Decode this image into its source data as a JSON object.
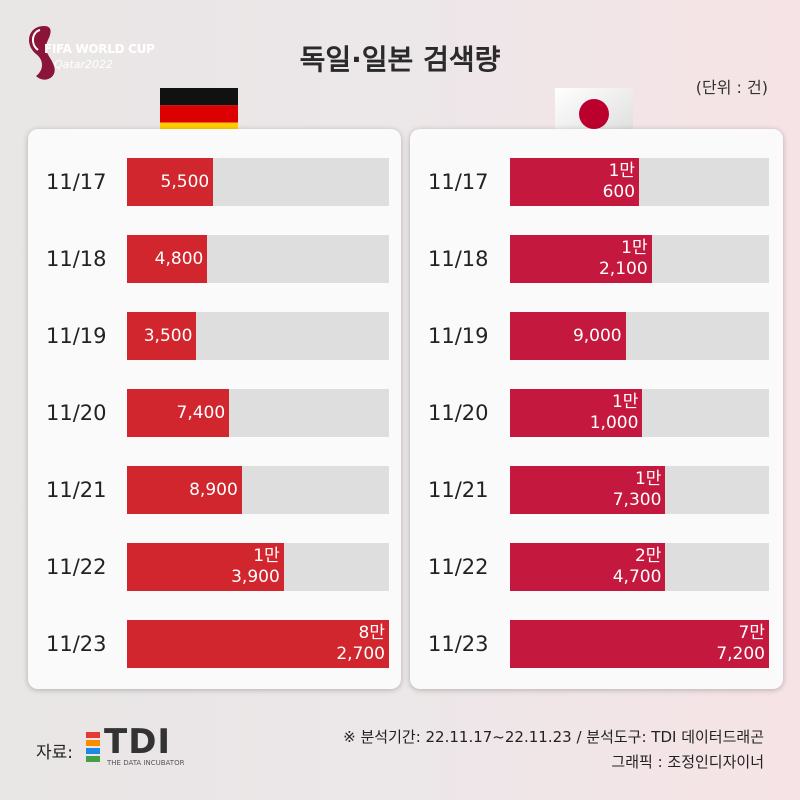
{
  "logo": {
    "line1": "FIFA WORLD CUP",
    "line2": "Qatar2022"
  },
  "title": "독일·일본 검색량",
  "unit": "(단위 : 건)",
  "colors": {
    "germany_bar": "#d1262e",
    "japan_bar": "#c4183f",
    "track": "#dedede"
  },
  "chart_data": [
    {
      "type": "bar",
      "orientation": "horizontal",
      "flag": "germany",
      "categories": [
        "11/17",
        "11/18",
        "11/19",
        "11/20",
        "11/21",
        "11/22",
        "11/23"
      ],
      "values": [
        5500,
        4800,
        3500,
        7400,
        8900,
        13900,
        82700
      ],
      "labels": [
        [
          "5,500"
        ],
        [
          "4,800"
        ],
        [
          "3,500"
        ],
        [
          "7,400"
        ],
        [
          "8,900"
        ],
        [
          "1만",
          "3,900"
        ],
        [
          "8만",
          "2,700"
        ]
      ]
    },
    {
      "type": "bar",
      "orientation": "horizontal",
      "flag": "japan",
      "categories": [
        "11/17",
        "11/18",
        "11/19",
        "11/20",
        "11/21",
        "11/22",
        "11/23"
      ],
      "values": [
        10600,
        12100,
        9000,
        11000,
        17300,
        24700,
        77200
      ],
      "labels": [
        [
          "1만",
          "600"
        ],
        [
          "1만",
          "2,100"
        ],
        [
          "9,000"
        ],
        [
          "1만",
          "1,000"
        ],
        [
          "1만",
          "7,300"
        ],
        [
          "2만",
          "4,700"
        ],
        [
          "7만",
          "7,200"
        ]
      ]
    }
  ],
  "footer": {
    "source_label": "자료:",
    "tdi_name": "TDI",
    "tdi_sub": "THE DATA INCUBATOR",
    "line1": "※ 분석기간: 22.11.17~22.11.23  / 분석도구: TDI 데이터드래곤",
    "line2": "그래픽 : 조정인디자이너"
  }
}
